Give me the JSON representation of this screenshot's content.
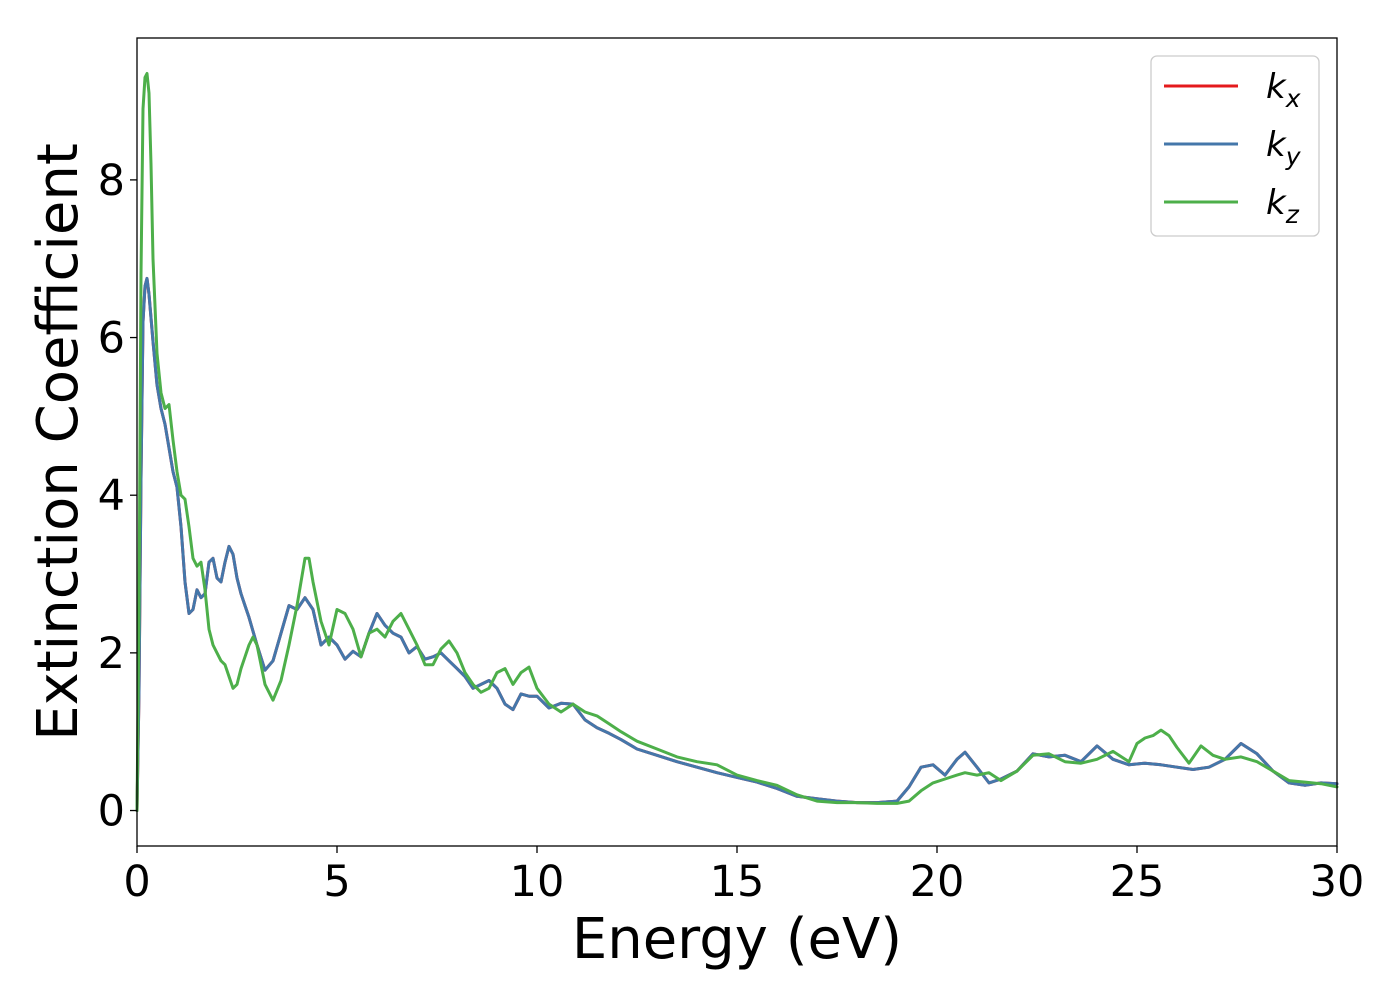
{
  "chart_data": {
    "type": "line",
    "title": "",
    "xlabel": "Energy (eV)",
    "ylabel": "Extinction Coefficient",
    "xlim": [
      0,
      30
    ],
    "ylim": [
      -0.45,
      9.8
    ],
    "xticks": [
      0,
      5,
      10,
      15,
      20,
      25,
      30
    ],
    "yticks": [
      0,
      2,
      4,
      6,
      8
    ],
    "grid": false,
    "legend_position": "top-right",
    "series": [
      {
        "name": "k_x",
        "name_base": "k",
        "name_sub": "x",
        "color": "#e41a1c",
        "x": [
          0,
          0.05,
          0.1,
          0.15,
          0.2,
          0.25,
          0.3,
          0.4,
          0.5,
          0.6,
          0.7,
          0.8,
          0.9,
          1.0,
          1.1,
          1.2,
          1.3,
          1.4,
          1.5,
          1.6,
          1.7,
          1.8,
          1.9,
          2.0,
          2.1,
          2.2,
          2.3,
          2.4,
          2.5,
          2.6,
          2.7,
          2.8,
          3.0,
          3.2,
          3.4,
          3.6,
          3.8,
          4.0,
          4.2,
          4.4,
          4.6,
          4.8,
          5.0,
          5.2,
          5.4,
          5.6,
          5.8,
          6.0,
          6.2,
          6.4,
          6.6,
          6.8,
          7.0,
          7.2,
          7.4,
          7.6,
          7.8,
          8.0,
          8.2,
          8.4,
          8.6,
          8.8,
          9.0,
          9.2,
          9.4,
          9.6,
          9.8,
          10.0,
          10.3,
          10.6,
          10.9,
          11.2,
          11.5,
          11.8,
          12.1,
          12.5,
          13.0,
          13.5,
          14.0,
          14.5,
          15.0,
          15.5,
          16.0,
          16.5,
          17.0,
          17.5,
          18.0,
          18.5,
          19.0,
          19.3,
          19.6,
          19.9,
          20.2,
          20.5,
          20.7,
          21.0,
          21.3,
          21.6,
          22.0,
          22.4,
          22.8,
          23.2,
          23.6,
          24.0,
          24.4,
          24.8,
          25.2,
          25.6,
          26.0,
          26.4,
          26.8,
          27.2,
          27.6,
          28.0,
          28.4,
          28.8,
          29.2,
          29.6,
          30.0
        ],
        "values": [
          0.0,
          1.5,
          4.2,
          6.2,
          6.65,
          6.75,
          6.55,
          5.95,
          5.4,
          5.1,
          4.9,
          4.6,
          4.3,
          4.1,
          3.6,
          2.9,
          2.5,
          2.55,
          2.8,
          2.7,
          2.75,
          3.15,
          3.2,
          2.95,
          2.9,
          3.15,
          3.35,
          3.25,
          2.95,
          2.75,
          2.6,
          2.45,
          2.1,
          1.78,
          1.9,
          2.25,
          2.6,
          2.55,
          2.7,
          2.55,
          2.1,
          2.2,
          2.1,
          1.92,
          2.02,
          1.95,
          2.25,
          2.5,
          2.35,
          2.25,
          2.2,
          2.0,
          2.08,
          1.92,
          1.95,
          2.0,
          1.9,
          1.8,
          1.7,
          1.55,
          1.6,
          1.65,
          1.55,
          1.35,
          1.28,
          1.48,
          1.45,
          1.45,
          1.3,
          1.36,
          1.35,
          1.15,
          1.05,
          0.98,
          0.9,
          0.78,
          0.7,
          0.62,
          0.55,
          0.48,
          0.42,
          0.36,
          0.28,
          0.18,
          0.15,
          0.12,
          0.1,
          0.1,
          0.12,
          0.3,
          0.55,
          0.58,
          0.45,
          0.65,
          0.74,
          0.55,
          0.35,
          0.4,
          0.5,
          0.72,
          0.68,
          0.7,
          0.62,
          0.82,
          0.65,
          0.58,
          0.6,
          0.58,
          0.55,
          0.52,
          0.55,
          0.65,
          0.85,
          0.72,
          0.5,
          0.35,
          0.32,
          0.35,
          0.34
        ]
      },
      {
        "name": "k_y",
        "name_base": "k",
        "name_sub": "y",
        "color": "#4477aa",
        "x": [
          0,
          0.05,
          0.1,
          0.15,
          0.2,
          0.25,
          0.3,
          0.4,
          0.5,
          0.6,
          0.7,
          0.8,
          0.9,
          1.0,
          1.1,
          1.2,
          1.3,
          1.4,
          1.5,
          1.6,
          1.7,
          1.8,
          1.9,
          2.0,
          2.1,
          2.2,
          2.3,
          2.4,
          2.5,
          2.6,
          2.7,
          2.8,
          3.0,
          3.2,
          3.4,
          3.6,
          3.8,
          4.0,
          4.2,
          4.4,
          4.6,
          4.8,
          5.0,
          5.2,
          5.4,
          5.6,
          5.8,
          6.0,
          6.2,
          6.4,
          6.6,
          6.8,
          7.0,
          7.2,
          7.4,
          7.6,
          7.8,
          8.0,
          8.2,
          8.4,
          8.6,
          8.8,
          9.0,
          9.2,
          9.4,
          9.6,
          9.8,
          10.0,
          10.3,
          10.6,
          10.9,
          11.2,
          11.5,
          11.8,
          12.1,
          12.5,
          13.0,
          13.5,
          14.0,
          14.5,
          15.0,
          15.5,
          16.0,
          16.5,
          17.0,
          17.5,
          18.0,
          18.5,
          19.0,
          19.3,
          19.6,
          19.9,
          20.2,
          20.5,
          20.7,
          21.0,
          21.3,
          21.6,
          22.0,
          22.4,
          22.8,
          23.2,
          23.6,
          24.0,
          24.4,
          24.8,
          25.2,
          25.6,
          26.0,
          26.4,
          26.8,
          27.2,
          27.6,
          28.0,
          28.4,
          28.8,
          29.2,
          29.6,
          30.0
        ],
        "values": [
          0.0,
          1.5,
          4.2,
          6.2,
          6.65,
          6.75,
          6.55,
          5.95,
          5.4,
          5.1,
          4.9,
          4.6,
          4.3,
          4.1,
          3.6,
          2.9,
          2.5,
          2.55,
          2.8,
          2.7,
          2.75,
          3.15,
          3.2,
          2.95,
          2.9,
          3.15,
          3.35,
          3.25,
          2.95,
          2.75,
          2.6,
          2.45,
          2.1,
          1.78,
          1.9,
          2.25,
          2.6,
          2.55,
          2.7,
          2.55,
          2.1,
          2.2,
          2.1,
          1.92,
          2.02,
          1.95,
          2.25,
          2.5,
          2.35,
          2.25,
          2.2,
          2.0,
          2.08,
          1.92,
          1.95,
          2.0,
          1.9,
          1.8,
          1.7,
          1.55,
          1.6,
          1.65,
          1.55,
          1.35,
          1.28,
          1.48,
          1.45,
          1.45,
          1.3,
          1.36,
          1.35,
          1.15,
          1.05,
          0.98,
          0.9,
          0.78,
          0.7,
          0.62,
          0.55,
          0.48,
          0.42,
          0.36,
          0.28,
          0.18,
          0.15,
          0.12,
          0.1,
          0.1,
          0.12,
          0.3,
          0.55,
          0.58,
          0.45,
          0.65,
          0.74,
          0.55,
          0.35,
          0.4,
          0.5,
          0.72,
          0.68,
          0.7,
          0.62,
          0.82,
          0.65,
          0.58,
          0.6,
          0.58,
          0.55,
          0.52,
          0.55,
          0.65,
          0.85,
          0.72,
          0.5,
          0.35,
          0.32,
          0.35,
          0.34
        ]
      },
      {
        "name": "k_z",
        "name_base": "k",
        "name_sub": "z",
        "color": "#4daf4a",
        "x": [
          0,
          0.05,
          0.1,
          0.15,
          0.2,
          0.25,
          0.3,
          0.35,
          0.4,
          0.5,
          0.6,
          0.7,
          0.8,
          0.9,
          1.0,
          1.1,
          1.2,
          1.3,
          1.4,
          1.5,
          1.6,
          1.7,
          1.8,
          1.9,
          2.0,
          2.1,
          2.2,
          2.3,
          2.4,
          2.5,
          2.6,
          2.7,
          2.8,
          2.9,
          3.0,
          3.2,
          3.4,
          3.6,
          3.8,
          4.0,
          4.2,
          4.3,
          4.4,
          4.6,
          4.8,
          5.0,
          5.2,
          5.4,
          5.6,
          5.8,
          6.0,
          6.2,
          6.4,
          6.6,
          6.8,
          7.0,
          7.2,
          7.4,
          7.6,
          7.8,
          8.0,
          8.2,
          8.4,
          8.6,
          8.8,
          9.0,
          9.2,
          9.4,
          9.6,
          9.8,
          10.0,
          10.3,
          10.6,
          10.9,
          11.2,
          11.5,
          11.8,
          12.1,
          12.5,
          13.0,
          13.5,
          14.0,
          14.5,
          15.0,
          15.5,
          16.0,
          16.5,
          17.0,
          17.5,
          18.0,
          18.5,
          19.0,
          19.3,
          19.6,
          19.9,
          20.2,
          20.5,
          20.7,
          21.0,
          21.3,
          21.6,
          22.0,
          22.4,
          22.8,
          23.2,
          23.6,
          24.0,
          24.4,
          24.8,
          25.0,
          25.2,
          25.4,
          25.6,
          25.8,
          26.0,
          26.3,
          26.6,
          26.9,
          27.2,
          27.6,
          28.0,
          28.4,
          28.8,
          29.2,
          29.6,
          30.0
        ],
        "values": [
          0.0,
          2.5,
          6.8,
          8.9,
          9.3,
          9.35,
          9.1,
          8.2,
          7.0,
          5.8,
          5.3,
          5.1,
          5.15,
          4.7,
          4.3,
          4.0,
          3.95,
          3.6,
          3.2,
          3.1,
          3.15,
          2.8,
          2.3,
          2.1,
          2.0,
          1.9,
          1.85,
          1.7,
          1.55,
          1.6,
          1.8,
          1.95,
          2.1,
          2.2,
          2.1,
          1.6,
          1.4,
          1.65,
          2.1,
          2.6,
          3.2,
          3.2,
          2.9,
          2.4,
          2.1,
          2.55,
          2.5,
          2.3,
          1.95,
          2.25,
          2.3,
          2.2,
          2.4,
          2.5,
          2.3,
          2.1,
          1.85,
          1.85,
          2.05,
          2.15,
          2.0,
          1.75,
          1.6,
          1.5,
          1.55,
          1.75,
          1.8,
          1.6,
          1.75,
          1.82,
          1.55,
          1.35,
          1.25,
          1.35,
          1.25,
          1.2,
          1.1,
          1.0,
          0.88,
          0.78,
          0.68,
          0.62,
          0.58,
          0.45,
          0.38,
          0.32,
          0.2,
          0.12,
          0.1,
          0.1,
          0.09,
          0.09,
          0.12,
          0.25,
          0.35,
          0.4,
          0.45,
          0.48,
          0.45,
          0.48,
          0.38,
          0.5,
          0.7,
          0.72,
          0.62,
          0.6,
          0.65,
          0.75,
          0.62,
          0.85,
          0.92,
          0.95,
          1.02,
          0.95,
          0.8,
          0.6,
          0.82,
          0.7,
          0.65,
          0.68,
          0.62,
          0.5,
          0.38,
          0.36,
          0.34,
          0.3
        ]
      }
    ]
  }
}
